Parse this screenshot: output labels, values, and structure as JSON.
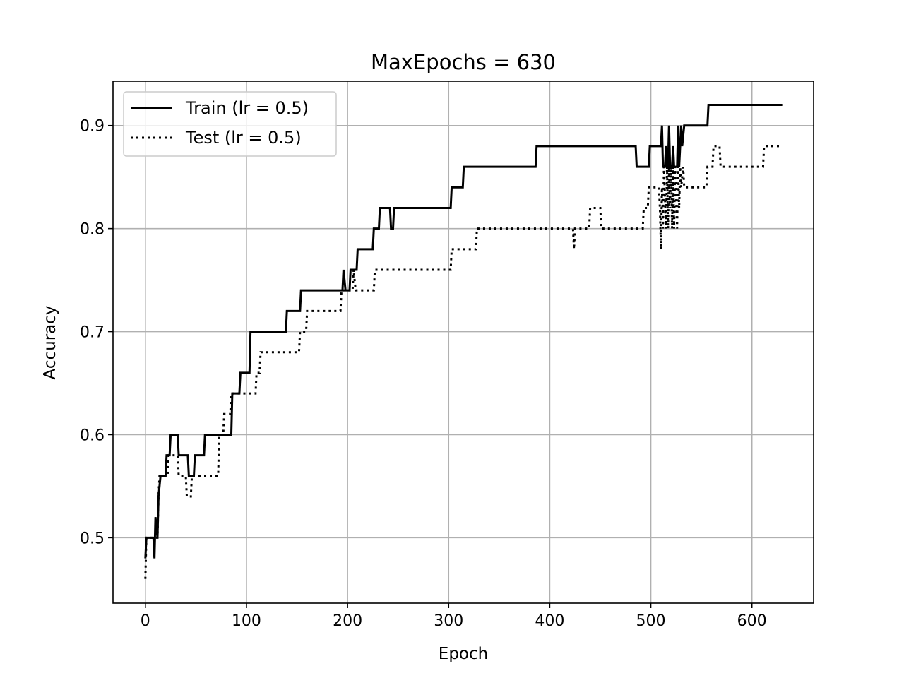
{
  "chart_data": {
    "type": "line",
    "title": "MaxEpochs = 630",
    "xlabel": "Epoch",
    "ylabel": "Accuracy",
    "xlim": [
      -32,
      661
    ],
    "ylim": [
      0.4365,
      0.943
    ],
    "xticks": [
      0,
      100,
      200,
      300,
      400,
      500,
      600
    ],
    "yticks": [
      0.5,
      0.6,
      0.7,
      0.8,
      0.9
    ],
    "xtick_labels": [
      "0",
      "100",
      "200",
      "300",
      "400",
      "500",
      "600"
    ],
    "ytick_labels": [
      "0.5",
      "0.6",
      "0.7",
      "0.8",
      "0.9"
    ],
    "grid": true,
    "legend_position": "top-left",
    "series": [
      {
        "name": "Train (lr = 0.5)",
        "style": "solid",
        "color": "#000000",
        "points": [
          [
            0,
            0.48
          ],
          [
            1,
            0.5
          ],
          [
            8,
            0.5
          ],
          [
            9,
            0.48
          ],
          [
            10,
            0.52
          ],
          [
            12,
            0.5
          ],
          [
            13,
            0.54
          ],
          [
            15,
            0.56
          ],
          [
            20,
            0.56
          ],
          [
            21,
            0.58
          ],
          [
            24,
            0.58
          ],
          [
            25,
            0.6
          ],
          [
            32,
            0.6
          ],
          [
            33,
            0.58
          ],
          [
            42,
            0.58
          ],
          [
            43,
            0.56
          ],
          [
            48,
            0.56
          ],
          [
            49,
            0.58
          ],
          [
            58,
            0.58
          ],
          [
            59,
            0.6
          ],
          [
            85,
            0.6
          ],
          [
            86,
            0.64
          ],
          [
            93,
            0.64
          ],
          [
            94,
            0.66
          ],
          [
            103,
            0.66
          ],
          [
            104,
            0.7
          ],
          [
            139,
            0.7
          ],
          [
            140,
            0.72
          ],
          [
            153,
            0.72
          ],
          [
            154,
            0.74
          ],
          [
            195,
            0.74
          ],
          [
            196,
            0.76
          ],
          [
            198,
            0.74
          ],
          [
            202,
            0.74
          ],
          [
            203,
            0.76
          ],
          [
            209,
            0.76
          ],
          [
            210,
            0.78
          ],
          [
            225,
            0.78
          ],
          [
            226,
            0.8
          ],
          [
            231,
            0.8
          ],
          [
            232,
            0.82
          ],
          [
            242,
            0.82
          ],
          [
            243,
            0.8
          ],
          [
            245,
            0.8
          ],
          [
            246,
            0.82
          ],
          [
            302,
            0.82
          ],
          [
            303,
            0.84
          ],
          [
            314,
            0.84
          ],
          [
            315,
            0.86
          ],
          [
            386,
            0.86
          ],
          [
            387,
            0.88
          ],
          [
            485,
            0.88
          ],
          [
            486,
            0.86
          ],
          [
            498,
            0.86
          ],
          [
            499,
            0.88
          ],
          [
            510,
            0.88
          ],
          [
            511,
            0.9
          ],
          [
            512,
            0.86
          ],
          [
            514,
            0.86
          ],
          [
            515,
            0.88
          ],
          [
            516,
            0.86
          ],
          [
            517,
            0.86
          ],
          [
            518,
            0.9
          ],
          [
            519,
            0.86
          ],
          [
            521,
            0.86
          ],
          [
            522,
            0.88
          ],
          [
            523,
            0.86
          ],
          [
            525,
            0.86
          ],
          [
            526,
            0.86
          ],
          [
            527,
            0.9
          ],
          [
            528,
            0.86
          ],
          [
            530,
            0.9
          ],
          [
            531,
            0.88
          ],
          [
            533,
            0.9
          ],
          [
            556,
            0.9
          ],
          [
            557,
            0.92
          ],
          [
            630,
            0.92
          ]
        ]
      },
      {
        "name": "Test (lr = 0.5)",
        "style": "dotted",
        "color": "#000000",
        "points": [
          [
            0,
            0.46
          ],
          [
            1,
            0.5
          ],
          [
            12,
            0.5
          ],
          [
            13,
            0.54
          ],
          [
            14,
            0.56
          ],
          [
            22,
            0.56
          ],
          [
            23,
            0.58
          ],
          [
            32,
            0.58
          ],
          [
            33,
            0.56
          ],
          [
            40,
            0.56
          ],
          [
            41,
            0.54
          ],
          [
            45,
            0.54
          ],
          [
            46,
            0.56
          ],
          [
            72,
            0.56
          ],
          [
            73,
            0.6
          ],
          [
            77,
            0.6
          ],
          [
            78,
            0.62
          ],
          [
            84,
            0.62
          ],
          [
            85,
            0.64
          ],
          [
            109,
            0.64
          ],
          [
            110,
            0.66
          ],
          [
            113,
            0.66
          ],
          [
            114,
            0.68
          ],
          [
            152,
            0.68
          ],
          [
            153,
            0.7
          ],
          [
            159,
            0.7
          ],
          [
            160,
            0.72
          ],
          [
            193,
            0.72
          ],
          [
            194,
            0.74
          ],
          [
            205,
            0.74
          ],
          [
            206,
            0.76
          ],
          [
            208,
            0.74
          ],
          [
            226,
            0.74
          ],
          [
            227,
            0.76
          ],
          [
            302,
            0.76
          ],
          [
            303,
            0.78
          ],
          [
            327,
            0.78
          ],
          [
            328,
            0.8
          ],
          [
            423,
            0.8
          ],
          [
            424,
            0.78
          ],
          [
            425,
            0.8
          ],
          [
            439,
            0.8
          ],
          [
            440,
            0.82
          ],
          [
            450,
            0.82
          ],
          [
            451,
            0.8
          ],
          [
            492,
            0.8
          ],
          [
            493,
            0.82
          ],
          [
            497,
            0.82
          ],
          [
            498,
            0.84
          ],
          [
            508,
            0.84
          ],
          [
            509,
            0.82
          ],
          [
            510,
            0.78
          ],
          [
            511,
            0.84
          ],
          [
            512,
            0.8
          ],
          [
            513,
            0.86
          ],
          [
            515,
            0.8
          ],
          [
            516,
            0.86
          ],
          [
            517,
            0.8
          ],
          [
            518,
            0.86
          ],
          [
            519,
            0.82
          ],
          [
            520,
            0.86
          ],
          [
            521,
            0.8
          ],
          [
            522,
            0.86
          ],
          [
            523,
            0.8
          ],
          [
            524,
            0.86
          ],
          [
            526,
            0.8
          ],
          [
            527,
            0.86
          ],
          [
            528,
            0.82
          ],
          [
            529,
            0.86
          ],
          [
            530,
            0.84
          ],
          [
            532,
            0.86
          ],
          [
            533,
            0.84
          ],
          [
            555,
            0.84
          ],
          [
            556,
            0.86
          ],
          [
            561,
            0.86
          ],
          [
            562,
            0.88
          ],
          [
            568,
            0.88
          ],
          [
            569,
            0.86
          ],
          [
            611,
            0.86
          ],
          [
            612,
            0.88
          ],
          [
            630,
            0.88
          ]
        ]
      }
    ]
  }
}
